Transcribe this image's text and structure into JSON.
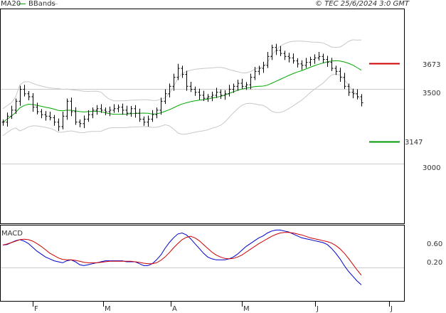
{
  "header": {
    "legend": [
      {
        "label": "MA20",
        "color": "#00aa00"
      },
      {
        "label": "BBands",
        "color": "#bbbbbb"
      }
    ],
    "source": "© TEC 25/6/2024 3:0 GMT"
  },
  "price_panel": {
    "y_ticks": [
      "3500",
      "3000"
    ],
    "resistance": {
      "value": "3673",
      "color": "#cc0000"
    },
    "support": {
      "value": "3147",
      "color": "#009900"
    }
  },
  "macd_panel": {
    "title": "MACD",
    "y_ticks": [
      "0.60",
      "0.20"
    ]
  },
  "x_axis": {
    "month_labels": [
      "F",
      "M",
      "A",
      "M",
      "J",
      "J"
    ]
  },
  "colors": {
    "bars": "#000000",
    "ma20": "#00aa00",
    "bbands": "#c8c8c8",
    "macd": "#0000cc",
    "signal": "#cc0000",
    "grid": "#cccccc",
    "frame": "#000000"
  },
  "chart_data": [
    {
      "type": "ohlc",
      "title": "",
      "ylim": [
        2700,
        3950
      ],
      "y_ticks": [
        3000,
        3500
      ],
      "close": [
        3280,
        3320,
        3360,
        3420,
        3500,
        3470,
        3450,
        3380,
        3350,
        3330,
        3320,
        3310,
        3280,
        3250,
        3320,
        3420,
        3350,
        3280,
        3270,
        3300,
        3330,
        3360,
        3370,
        3360,
        3350,
        3360,
        3370,
        3380,
        3360,
        3340,
        3370,
        3340,
        3300,
        3280,
        3300,
        3330,
        3360,
        3420,
        3470,
        3520,
        3580,
        3640,
        3600,
        3520,
        3500,
        3480,
        3460,
        3440,
        3450,
        3460,
        3480,
        3460,
        3470,
        3500,
        3520,
        3540,
        3520,
        3530,
        3580,
        3620,
        3640,
        3660,
        3720,
        3780,
        3760,
        3740,
        3720,
        3710,
        3690,
        3670,
        3660,
        3680,
        3700,
        3710,
        3720,
        3700,
        3680,
        3640,
        3620,
        3580,
        3520,
        3480,
        3470,
        3450,
        3410
      ],
      "indicators": [
        "MA20",
        "BBands"
      ],
      "resistance": 3673,
      "support": 3147
    },
    {
      "type": "line",
      "title": "MACD",
      "y_ticks": [
        0.6,
        0.2
      ],
      "ylim": [
        -0.4,
        1.0
      ],
      "series": [
        {
          "name": "MACD",
          "values": [
            0.55,
            0.56,
            0.6,
            0.64,
            0.66,
            0.63,
            0.58,
            0.5,
            0.42,
            0.36,
            0.3,
            0.26,
            0.22,
            0.2,
            0.18,
            0.22,
            0.24,
            0.2,
            0.14,
            0.12,
            0.14,
            0.16,
            0.18,
            0.2,
            0.22,
            0.22,
            0.22,
            0.22,
            0.22,
            0.2,
            0.2,
            0.2,
            0.16,
            0.12,
            0.12,
            0.16,
            0.24,
            0.34,
            0.48,
            0.6,
            0.7,
            0.78,
            0.8,
            0.76,
            0.68,
            0.58,
            0.48,
            0.38,
            0.3,
            0.26,
            0.24,
            0.24,
            0.24,
            0.26,
            0.3,
            0.36,
            0.44,
            0.52,
            0.58,
            0.64,
            0.7,
            0.74,
            0.8,
            0.84,
            0.86,
            0.86,
            0.84,
            0.82,
            0.78,
            0.74,
            0.7,
            0.68,
            0.66,
            0.64,
            0.62,
            0.6,
            0.56,
            0.48,
            0.38,
            0.26,
            0.12,
            0.0,
            -0.1,
            -0.2,
            -0.28
          ]
        },
        {
          "name": "Signal",
          "values": [
            0.55,
            0.57,
            0.6,
            0.63,
            0.66,
            0.67,
            0.66,
            0.63,
            0.58,
            0.52,
            0.45,
            0.38,
            0.33,
            0.28,
            0.25,
            0.24,
            0.24,
            0.23,
            0.21,
            0.19,
            0.18,
            0.18,
            0.18,
            0.19,
            0.2,
            0.21,
            0.21,
            0.21,
            0.21,
            0.21,
            0.21,
            0.2,
            0.19,
            0.17,
            0.16,
            0.16,
            0.18,
            0.23,
            0.3,
            0.39,
            0.49,
            0.58,
            0.66,
            0.71,
            0.73,
            0.7,
            0.64,
            0.56,
            0.48,
            0.4,
            0.34,
            0.3,
            0.27,
            0.26,
            0.27,
            0.3,
            0.34,
            0.4,
            0.46,
            0.52,
            0.58,
            0.63,
            0.68,
            0.73,
            0.77,
            0.8,
            0.81,
            0.81,
            0.8,
            0.78,
            0.76,
            0.73,
            0.7,
            0.68,
            0.66,
            0.64,
            0.62,
            0.59,
            0.54,
            0.47,
            0.38,
            0.27,
            0.15,
            0.03,
            -0.08
          ]
        }
      ]
    }
  ]
}
